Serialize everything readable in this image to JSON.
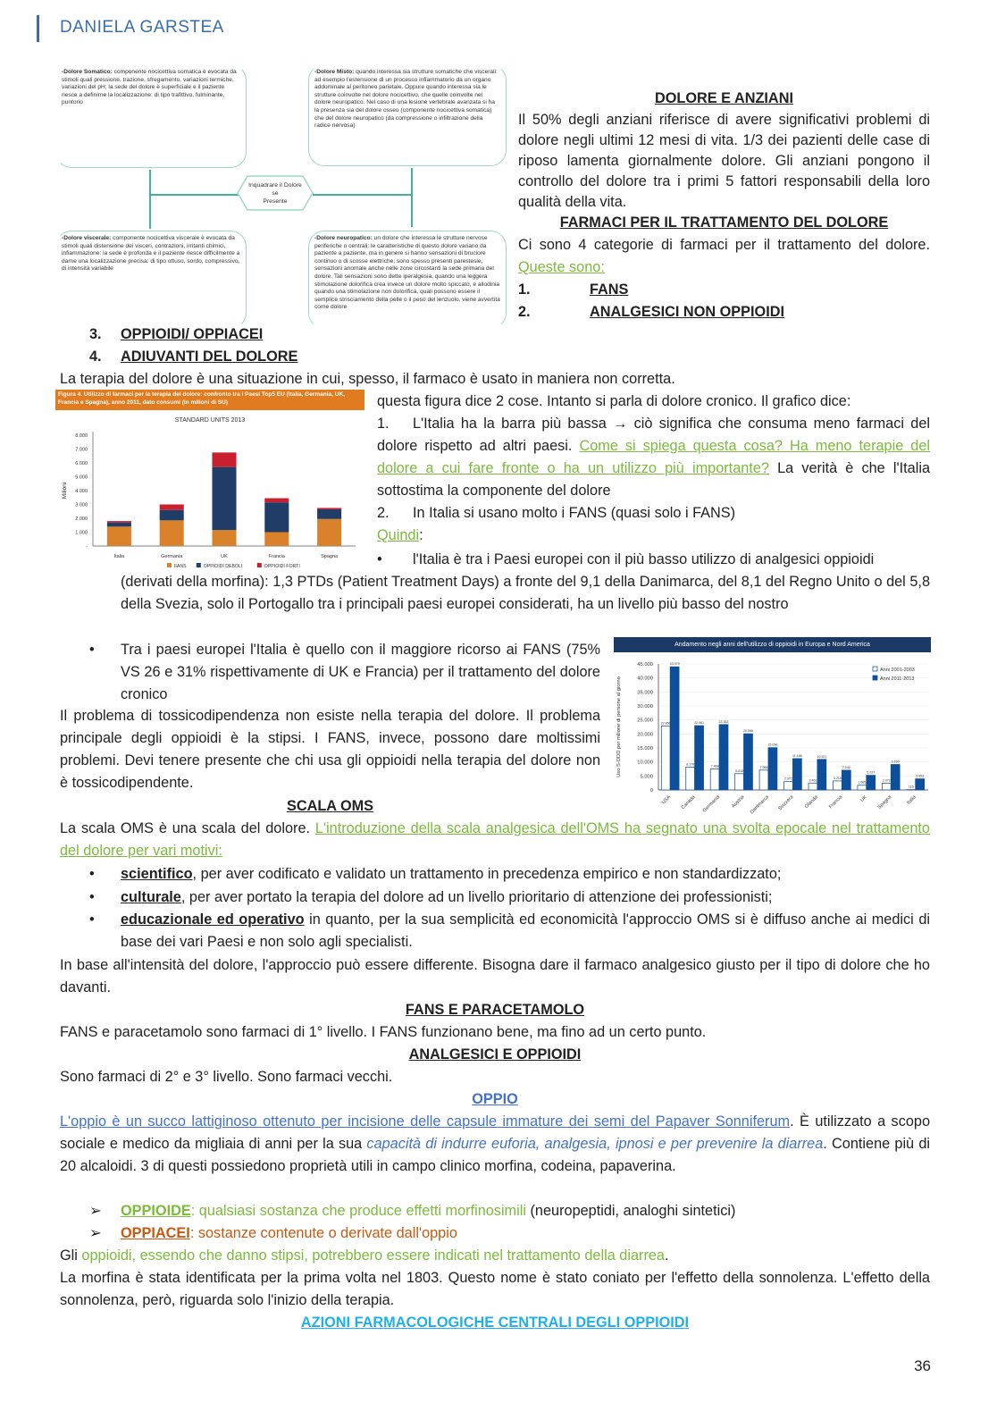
{
  "header": {
    "author": "DANIELA GARSTEA"
  },
  "diagram": {
    "center": [
      "Inquadrare il Dolore",
      "se",
      "Presente"
    ],
    "somatico": {
      "term": "-Dolore Somatico:",
      "text": " componente nocicettiva somatica è evocata da stimoli quali pressione, trazione, sfregamento, variazioni termiche, variazioni del pH; la sede del dolore è superficiale e il paziente riesce a definirne la localizzazione: di tipo trafittivo, fulminante, puntorio"
    },
    "misto": {
      "term": "-Dolore Misto:",
      "text": " quando interessa sia strutture somatiche che viscerali: ad esempio l'estensione di un processo infiammatorio da un organo addominale al peritoneo parietale. Oppure quando interessa sia le strutture coinvolte nel dolore nocicettivo, che quelle coinvolte nel dolore neuropatico. Nel caso di una lesione vertebrale avanzata si ha la presenza sia del dolore osseo (componente nocicettiva somatica) che del dolore neuropatico (da compressione o infiltrazione della radice nervosa)"
    },
    "viscerale": {
      "term": "-Dolore viscerale:",
      "text": " componente nocicettiva viscerale è evocata da stimoli quali distensione dei visceri, contrazioni, irritanti chimici, infiammazione: la sede è profonda e il paziente riesce difficilmente a darne una localizzazione precisa: di tipo ottuso, sordo,  compressivo, di intensità variabile"
    },
    "neuropatico": {
      "term": "-Dolore neuropatico:",
      "text": " un dolore che interessa le strutture nervose periferiche o centrali: le caratteristiche di questo dolore variano da paziente a paziente, ma in genere si hanno sensazioni di bruciore continuo o di scosse elettriche; sono spesso presenti parestesie, sensazioni anomale anche nelle zone circostanti la sede primaria del dolore. Tali sensazioni sono dette iperalgesia, quando una leggera stimolazione dolorifica crea invece un dolore molto spiccato, e allodinia quando una stimolazione non dolorifica, quali possono essere il semplice strisciamento della pelle o il peso del lenzuolo, viene avvertita come dolore"
    }
  },
  "anziani": {
    "title": "DOLORE E ANZIANI",
    "text": "Il 50% degli anziani riferisce di avere significativi problemi di dolore negli ultimi 12 mesi di vita. 1/3 dei pazienti delle case di riposo lamenta giornalmente dolore. Gli anziani pongono il controllo del dolore tra i primi 5 fattori responsabili della loro qualità della vita."
  },
  "farmaci": {
    "title": "FARMACI PER IL TRATTAMENTO DEL DOLORE",
    "text": "Ci sono 4 categorie di farmaci per il trattamento del dolore. ",
    "link": "Queste sono:",
    "items": [
      {
        "n": "1.",
        "label": "FANS"
      },
      {
        "n": "2.",
        "label": "ANALGESICI NON OPPIOIDI"
      },
      {
        "n": "3.",
        "label": "OPPIOIDI/ OPPIACEI"
      },
      {
        "n": "4.",
        "label": "ADIUVANTI DEL DOLORE"
      }
    ]
  },
  "terapia": {
    "text": "La terapia del dolore è una situazione in cui, spesso, il farmaco è usato in maniera non corretta."
  },
  "figura": {
    "intro": "questa figura dice 2 cose. Intanto si parla di dolore cronico. Il grafico dice:",
    "p1_n": "1.",
    "p1_a": "L'Italia ha la barra più bassa → ciò significa che consuma meno farmaci del dolore rispetto ad altri paesi. ",
    "p1_link": "Come si spiega questa cosa? Ha meno terapie del dolore a cui fare fronte o ha un utilizzo più importante?",
    "p1_b": " La verità è che l'Italia sottostima la componente del dolore",
    "p2_n": "2.",
    "p2": "In Italia si usano molto i FANS (quasi solo i FANS)",
    "quindi": "Quindi",
    "colon": ":"
  },
  "bullets_a": {
    "b1_first": "l'Italia è tra i Paesi europei con il più basso utilizzo di analgesici oppioidi",
    "b1_rest": "(derivati della morfina): 1,3 PTDs (Patient Treatment Days) a fronte del 9,1 della Danimarca, del 8,1 del Regno Unito o del 5,8 della Svezia, solo il Portogallo tra i principali paesi europei considerati, ha un livello più basso del nostro",
    "b2": "Tra i paesi europei l'Italia è quello con il maggiore ricorso ai FANS (75% VS 26 e 31% rispettivamente di UK e Francia) per il trattamento del dolore cronico"
  },
  "tossico": {
    "text": "Il problema di tossicodipendenza non esiste nella terapia del dolore. Il problema principale degli oppioidi è la stipsi. I FANS, invece, possono dare moltissimi problemi. Devi tenere presente che chi usa gli oppioidi nella terapia del dolore non è tossicodipendente."
  },
  "oms": {
    "title": "SCALA OMS",
    "text": "La scala OMS è una scala del dolore. ",
    "link": "L'introduzione della scala analgesica dell'OMS ha segnato una svolta epocale nel trattamento del dolore per vari motivi:",
    "bullets": [
      {
        "term": "scientifico",
        "text": ", per aver codificato e validato un trattamento in precedenza empirico e non standardizzato;"
      },
      {
        "term": "culturale",
        "text": ", per aver portato la terapia del dolore ad un livello prioritario di attenzione dei professionisti;"
      },
      {
        "term": "educazionale ed operativo",
        "text": " in quanto, per la sua semplicità ed economicità l'approccio OMS si è diffuso anche ai medici di base dei vari Paesi e non solo agli specialisti."
      }
    ],
    "after": "In base all'intensità del dolore, l'approccio può essere differente. Bisogna dare il farmaco analgesico giusto per il tipo di dolore che ho davanti."
  },
  "fans_par": {
    "title": "FANS E PARACETAMOLO",
    "text": "FANS e paracetamolo sono farmaci di 1° livello. I FANS funzionano bene, ma fino ad un certo punto."
  },
  "analg": {
    "title": "ANALGESICI E OPPIOIDI",
    "text": "Sono farmaci di 2° e 3° livello. Sono farmaci vecchi."
  },
  "oppio": {
    "title": "OPPIO",
    "link": "L'oppio è un succo lattiginoso ottenuto per incisione delle capsule immature dei semi del Papaver Sonniferum",
    "t1": ". È utilizzato a scopo sociale e medico da migliaia di anni per la sua ",
    "italic": "capacità di indurre euforia, analgesia, ipnosi e per prevenire la diarrea",
    "t2": ". Contiene più di 20 alcaloidi. 3 di questi possiedono proprietà utili in campo clinico morfina, codeina, papaverina.",
    "arrow1_term": "OPPIOIDE",
    "arrow1_text": ": qualsiasi sostanza che produce effetti morfinosimili",
    "arrow1_tail": " (neuropeptidi, analoghi sintetici)",
    "arrow2_term": "OPPIACEI",
    "arrow2_text": ": sostanze contenute o derivate dall'oppio",
    "gli": "Gli ",
    "gli_green": "oppioidi, essendo che danno stipsi, potrebbero essere indicati nel trattamento della diarrea",
    "gli_end": ".",
    "morfina": "La morfina è stata identificata per la prima volta nel 1803. Questo nome è stato coniato per l'effetto della sonnolenza. L'effetto della sonnolenza, però, riguarda solo l'inizio della terapia.",
    "azioni": "AZIONI FARMACOLOGICHE CENTRALI DEGLI OPPIOIDI"
  },
  "page_number": "36",
  "chart_data": [
    {
      "type": "bar",
      "stacked": true,
      "caption": "Figura 4. Utilizzo di farmaci per la terapia del dolore: confronto tra i Paesi Top5 EU (Italia, Germania, UK, Francia e Spagna), anno 2011, dato consumi (in milioni di SU)",
      "title": "STANDARD UNITS 2013",
      "ylabel": "Milioni",
      "ylim": [
        0,
        8000
      ],
      "yticks": [
        "-",
        "1.000",
        "2.000",
        "3.000",
        "4.000",
        "5.000",
        "6.000",
        "7.000",
        "8.000"
      ],
      "categories": [
        "Italia",
        "Germania",
        "UK",
        "Francia",
        "Spagna"
      ],
      "series": [
        {
          "name": "FANS",
          "color": "#d9822b",
          "values": [
            1400,
            1850,
            1150,
            1000,
            1950
          ]
        },
        {
          "name": "OPPIOIDI DEBOLI",
          "color": "#1f3d66",
          "values": [
            300,
            750,
            4550,
            2150,
            700
          ]
        },
        {
          "name": "OPPIOIDI FORTI",
          "color": "#c8202f",
          "values": [
            100,
            400,
            1050,
            300,
            100
          ]
        }
      ],
      "legend": "bottom",
      "caption_color": "#e07b1f"
    },
    {
      "type": "bar",
      "title": "Andamento negli anni dell'utilizzo di oppioidi in Europa e Nord America",
      "ylabel": "Uso S-DDD per milione di persone al giorno",
      "ylim": [
        0,
        45000
      ],
      "yticks": [
        "0",
        "5.000",
        "10.000",
        "15.000",
        "20.000",
        "25.000",
        "30.000",
        "35.000",
        "40.000",
        "45.000"
      ],
      "categories": [
        "USA",
        "Canada",
        "Germania",
        "Austria",
        "Danimarca",
        "Svizzera",
        "Olanda",
        "Francia",
        "UK",
        "Spagna",
        "Italia"
      ],
      "series": [
        {
          "name": "Anni 2001-2003",
          "color": "#ffffff",
          "stroke": "#1f5a9e",
          "values": [
            22856,
            8170,
            7468,
            5818,
            7088,
            2972,
            2461,
            3215,
            1685,
            2372,
            116
          ],
          "labels": [
            "22.856",
            "8.170",
            "7.468",
            "5.818",
            "7.088",
            "2.972",
            "2.461",
            "3.215",
            "1.685",
            "2.372",
            "116"
          ]
        },
        {
          "name": "Anni 2011-2013",
          "color": "#0d4f9a",
          "values": [
            43979,
            22961,
            23352,
            20066,
            15096,
            11186,
            10921,
            7042,
            5227,
            9090,
            3953
          ],
          "labels": [
            "43.979",
            "22.961",
            "23.352",
            "20.066",
            "15.096",
            "11.186",
            "10.921",
            "7.042",
            "5.227",
            "9.090",
            "3.953"
          ]
        }
      ],
      "legend": "top-right",
      "title_bg": "#1c3a66",
      "grid": true
    }
  ]
}
